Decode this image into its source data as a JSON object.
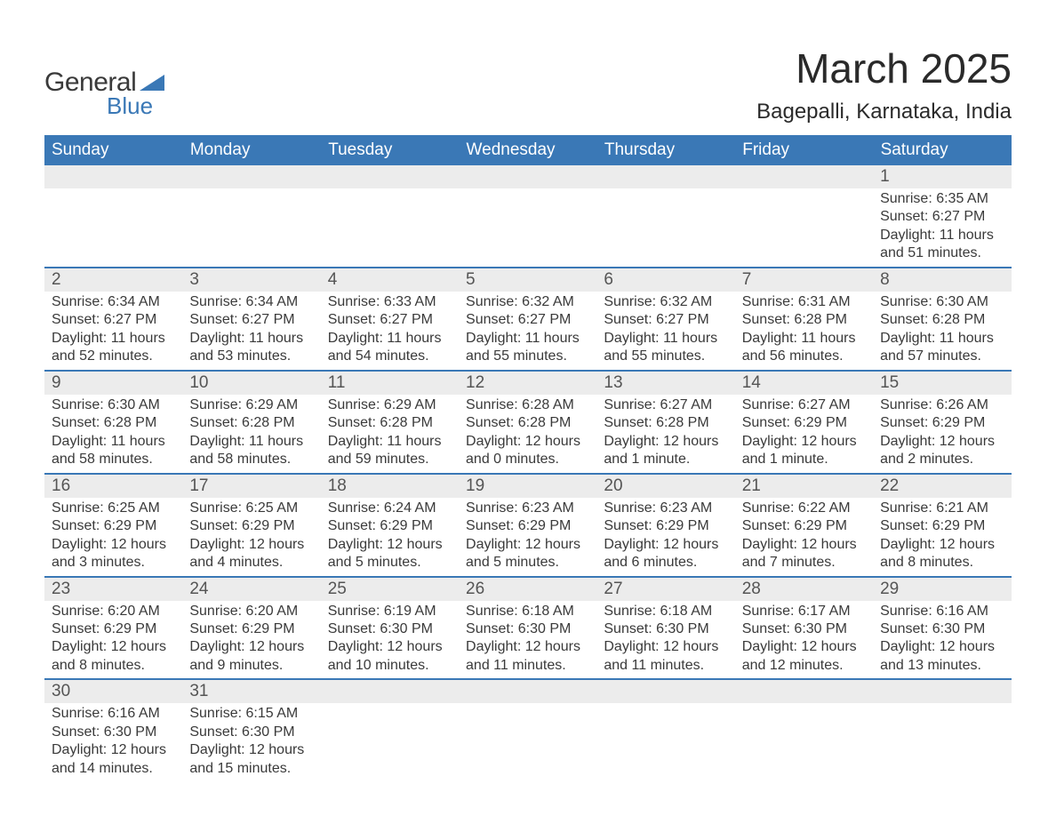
{
  "brand": {
    "name_part1": "General",
    "name_part2": "Blue",
    "triangle_color": "#3a78b6",
    "text_color_dark": "#3a3a3a",
    "text_color_blue": "#3a78b6"
  },
  "header": {
    "month_title": "March 2025",
    "location": "Bagepalli, Karnataka, India"
  },
  "colors": {
    "header_bg": "#3a78b6",
    "header_text": "#ffffff",
    "daynum_bg": "#ececec",
    "daynum_text": "#555555",
    "body_text": "#3a3a3a",
    "row_divider": "#3a78b6",
    "page_bg": "#ffffff"
  },
  "typography": {
    "month_title_fontsize": 46,
    "location_fontsize": 24,
    "weekday_fontsize": 19,
    "daynum_fontsize": 19,
    "body_fontsize": 16
  },
  "calendar": {
    "type": "table",
    "weekdays": [
      "Sunday",
      "Monday",
      "Tuesday",
      "Wednesday",
      "Thursday",
      "Friday",
      "Saturday"
    ],
    "weeks": [
      [
        null,
        null,
        null,
        null,
        null,
        null,
        {
          "day": "1",
          "sunrise": "Sunrise: 6:35 AM",
          "sunset": "Sunset: 6:27 PM",
          "daylight1": "Daylight: 11 hours",
          "daylight2": "and 51 minutes."
        }
      ],
      [
        {
          "day": "2",
          "sunrise": "Sunrise: 6:34 AM",
          "sunset": "Sunset: 6:27 PM",
          "daylight1": "Daylight: 11 hours",
          "daylight2": "and 52 minutes."
        },
        {
          "day": "3",
          "sunrise": "Sunrise: 6:34 AM",
          "sunset": "Sunset: 6:27 PM",
          "daylight1": "Daylight: 11 hours",
          "daylight2": "and 53 minutes."
        },
        {
          "day": "4",
          "sunrise": "Sunrise: 6:33 AM",
          "sunset": "Sunset: 6:27 PM",
          "daylight1": "Daylight: 11 hours",
          "daylight2": "and 54 minutes."
        },
        {
          "day": "5",
          "sunrise": "Sunrise: 6:32 AM",
          "sunset": "Sunset: 6:27 PM",
          "daylight1": "Daylight: 11 hours",
          "daylight2": "and 55 minutes."
        },
        {
          "day": "6",
          "sunrise": "Sunrise: 6:32 AM",
          "sunset": "Sunset: 6:27 PM",
          "daylight1": "Daylight: 11 hours",
          "daylight2": "and 55 minutes."
        },
        {
          "day": "7",
          "sunrise": "Sunrise: 6:31 AM",
          "sunset": "Sunset: 6:28 PM",
          "daylight1": "Daylight: 11 hours",
          "daylight2": "and 56 minutes."
        },
        {
          "day": "8",
          "sunrise": "Sunrise: 6:30 AM",
          "sunset": "Sunset: 6:28 PM",
          "daylight1": "Daylight: 11 hours",
          "daylight2": "and 57 minutes."
        }
      ],
      [
        {
          "day": "9",
          "sunrise": "Sunrise: 6:30 AM",
          "sunset": "Sunset: 6:28 PM",
          "daylight1": "Daylight: 11 hours",
          "daylight2": "and 58 minutes."
        },
        {
          "day": "10",
          "sunrise": "Sunrise: 6:29 AM",
          "sunset": "Sunset: 6:28 PM",
          "daylight1": "Daylight: 11 hours",
          "daylight2": "and 58 minutes."
        },
        {
          "day": "11",
          "sunrise": "Sunrise: 6:29 AM",
          "sunset": "Sunset: 6:28 PM",
          "daylight1": "Daylight: 11 hours",
          "daylight2": "and 59 minutes."
        },
        {
          "day": "12",
          "sunrise": "Sunrise: 6:28 AM",
          "sunset": "Sunset: 6:28 PM",
          "daylight1": "Daylight: 12 hours",
          "daylight2": "and 0 minutes."
        },
        {
          "day": "13",
          "sunrise": "Sunrise: 6:27 AM",
          "sunset": "Sunset: 6:28 PM",
          "daylight1": "Daylight: 12 hours",
          "daylight2": "and 1 minute."
        },
        {
          "day": "14",
          "sunrise": "Sunrise: 6:27 AM",
          "sunset": "Sunset: 6:29 PM",
          "daylight1": "Daylight: 12 hours",
          "daylight2": "and 1 minute."
        },
        {
          "day": "15",
          "sunrise": "Sunrise: 6:26 AM",
          "sunset": "Sunset: 6:29 PM",
          "daylight1": "Daylight: 12 hours",
          "daylight2": "and 2 minutes."
        }
      ],
      [
        {
          "day": "16",
          "sunrise": "Sunrise: 6:25 AM",
          "sunset": "Sunset: 6:29 PM",
          "daylight1": "Daylight: 12 hours",
          "daylight2": "and 3 minutes."
        },
        {
          "day": "17",
          "sunrise": "Sunrise: 6:25 AM",
          "sunset": "Sunset: 6:29 PM",
          "daylight1": "Daylight: 12 hours",
          "daylight2": "and 4 minutes."
        },
        {
          "day": "18",
          "sunrise": "Sunrise: 6:24 AM",
          "sunset": "Sunset: 6:29 PM",
          "daylight1": "Daylight: 12 hours",
          "daylight2": "and 5 minutes."
        },
        {
          "day": "19",
          "sunrise": "Sunrise: 6:23 AM",
          "sunset": "Sunset: 6:29 PM",
          "daylight1": "Daylight: 12 hours",
          "daylight2": "and 5 minutes."
        },
        {
          "day": "20",
          "sunrise": "Sunrise: 6:23 AM",
          "sunset": "Sunset: 6:29 PM",
          "daylight1": "Daylight: 12 hours",
          "daylight2": "and 6 minutes."
        },
        {
          "day": "21",
          "sunrise": "Sunrise: 6:22 AM",
          "sunset": "Sunset: 6:29 PM",
          "daylight1": "Daylight: 12 hours",
          "daylight2": "and 7 minutes."
        },
        {
          "day": "22",
          "sunrise": "Sunrise: 6:21 AM",
          "sunset": "Sunset: 6:29 PM",
          "daylight1": "Daylight: 12 hours",
          "daylight2": "and 8 minutes."
        }
      ],
      [
        {
          "day": "23",
          "sunrise": "Sunrise: 6:20 AM",
          "sunset": "Sunset: 6:29 PM",
          "daylight1": "Daylight: 12 hours",
          "daylight2": "and 8 minutes."
        },
        {
          "day": "24",
          "sunrise": "Sunrise: 6:20 AM",
          "sunset": "Sunset: 6:29 PM",
          "daylight1": "Daylight: 12 hours",
          "daylight2": "and 9 minutes."
        },
        {
          "day": "25",
          "sunrise": "Sunrise: 6:19 AM",
          "sunset": "Sunset: 6:30 PM",
          "daylight1": "Daylight: 12 hours",
          "daylight2": "and 10 minutes."
        },
        {
          "day": "26",
          "sunrise": "Sunrise: 6:18 AM",
          "sunset": "Sunset: 6:30 PM",
          "daylight1": "Daylight: 12 hours",
          "daylight2": "and 11 minutes."
        },
        {
          "day": "27",
          "sunrise": "Sunrise: 6:18 AM",
          "sunset": "Sunset: 6:30 PM",
          "daylight1": "Daylight: 12 hours",
          "daylight2": "and 11 minutes."
        },
        {
          "day": "28",
          "sunrise": "Sunrise: 6:17 AM",
          "sunset": "Sunset: 6:30 PM",
          "daylight1": "Daylight: 12 hours",
          "daylight2": "and 12 minutes."
        },
        {
          "day": "29",
          "sunrise": "Sunrise: 6:16 AM",
          "sunset": "Sunset: 6:30 PM",
          "daylight1": "Daylight: 12 hours",
          "daylight2": "and 13 minutes."
        }
      ],
      [
        {
          "day": "30",
          "sunrise": "Sunrise: 6:16 AM",
          "sunset": "Sunset: 6:30 PM",
          "daylight1": "Daylight: 12 hours",
          "daylight2": "and 14 minutes."
        },
        {
          "day": "31",
          "sunrise": "Sunrise: 6:15 AM",
          "sunset": "Sunset: 6:30 PM",
          "daylight1": "Daylight: 12 hours",
          "daylight2": "and 15 minutes."
        },
        null,
        null,
        null,
        null,
        null
      ]
    ]
  }
}
